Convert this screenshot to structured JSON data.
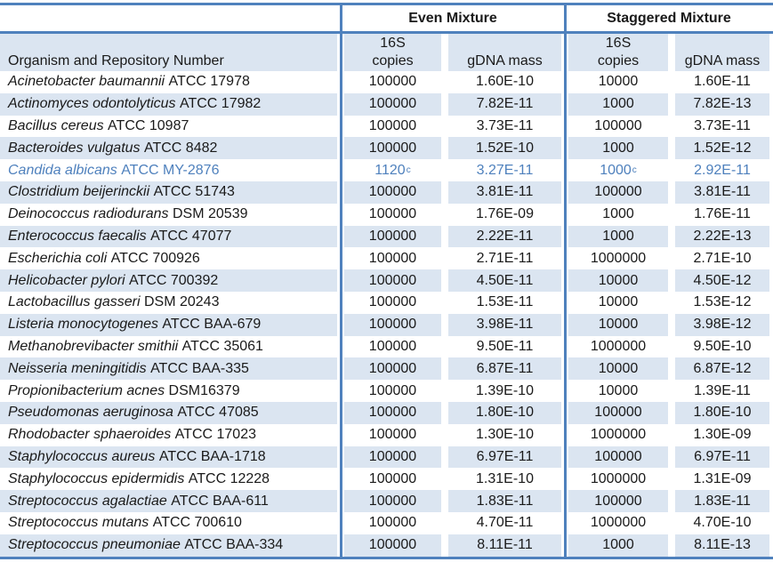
{
  "table": {
    "organism_header": "Organism and Repository Number",
    "groups": [
      {
        "label": "Even Mixture"
      },
      {
        "label": "Staggered Mixture"
      }
    ],
    "subheaders": {
      "copies_line1": "16S",
      "copies_line2": "copies",
      "gdna": "gDNA mass"
    },
    "colors": {
      "line_blue": "#4f81bd",
      "row_shade": "#dbe5f1",
      "highlight_text": "#4f81bd"
    },
    "rows": [
      {
        "organism": "Acinetobacter baumannii",
        "repository": "ATCC 17978",
        "even_16s_copies": "100000",
        "even_gdna_mass": "1.60E-10",
        "staggered_16s_copies": "10000",
        "staggered_gdna_mass": "1.60E-11"
      },
      {
        "organism": "Actinomyces odontolyticus",
        "repository": "ATCC 17982",
        "even_16s_copies": "100000",
        "even_gdna_mass": "7.82E-11",
        "staggered_16s_copies": "1000",
        "staggered_gdna_mass": "7.82E-13"
      },
      {
        "organism": "Bacillus cereus",
        "repository": "ATCC 10987",
        "even_16s_copies": "100000",
        "even_gdna_mass": "3.73E-11",
        "staggered_16s_copies": "100000",
        "staggered_gdna_mass": "3.73E-11"
      },
      {
        "organism": "Bacteroides vulgatus",
        "repository": "ATCC 8482",
        "even_16s_copies": "100000",
        "even_gdna_mass": "1.52E-10",
        "staggered_16s_copies": "1000",
        "staggered_gdna_mass": "1.52E-12"
      },
      {
        "organism": "Candida albicans",
        "repository": "ATCC MY-2876",
        "even_16s_copies": "1120",
        "even_16s_copies_sup": "c",
        "even_gdna_mass": "3.27E-11",
        "staggered_16s_copies": "1000",
        "staggered_16s_copies_sup": "c",
        "staggered_gdna_mass": "2.92E-11",
        "highlighted": true
      },
      {
        "organism": "Clostridium beijerinckii",
        "repository": "ATCC 51743",
        "even_16s_copies": "100000",
        "even_gdna_mass": "3.81E-11",
        "staggered_16s_copies": "100000",
        "staggered_gdna_mass": "3.81E-11"
      },
      {
        "organism": "Deinococcus radiodurans",
        "repository": "DSM 20539",
        "even_16s_copies": "100000",
        "even_gdna_mass": "1.76E-09",
        "staggered_16s_copies": "1000",
        "staggered_gdna_mass": "1.76E-11"
      },
      {
        "organism": "Enterococcus faecalis",
        "repository": "ATCC 47077",
        "even_16s_copies": "100000",
        "even_gdna_mass": "2.22E-11",
        "staggered_16s_copies": "1000",
        "staggered_gdna_mass": "2.22E-13"
      },
      {
        "organism": "Escherichia coli",
        "repository": "ATCC 700926",
        "even_16s_copies": "100000",
        "even_gdna_mass": "2.71E-11",
        "staggered_16s_copies": "1000000",
        "staggered_gdna_mass": "2.71E-10"
      },
      {
        "organism": "Helicobacter pylori",
        "repository": "ATCC 700392",
        "even_16s_copies": "100000",
        "even_gdna_mass": "4.50E-11",
        "staggered_16s_copies": "10000",
        "staggered_gdna_mass": "4.50E-12"
      },
      {
        "organism": "Lactobacillus gasseri",
        "repository": "DSM 20243",
        "even_16s_copies": "100000",
        "even_gdna_mass": "1.53E-11",
        "staggered_16s_copies": "10000",
        "staggered_gdna_mass": "1.53E-12"
      },
      {
        "organism": "Listeria monocytogenes",
        "repository": "ATCC BAA-679",
        "even_16s_copies": "100000",
        "even_gdna_mass": "3.98E-11",
        "staggered_16s_copies": "10000",
        "staggered_gdna_mass": "3.98E-12"
      },
      {
        "organism": "Methanobrevibacter smithii",
        "repository": "ATCC 35061",
        "even_16s_copies": "100000",
        "even_gdna_mass": "9.50E-11",
        "staggered_16s_copies": "1000000",
        "staggered_gdna_mass": "9.50E-10"
      },
      {
        "organism": "Neisseria meningitidis",
        "repository": "ATCC BAA-335",
        "even_16s_copies": "100000",
        "even_gdna_mass": "6.87E-11",
        "staggered_16s_copies": "10000",
        "staggered_gdna_mass": "6.87E-12"
      },
      {
        "organism": "Propionibacterium acnes",
        "repository": "DSM16379",
        "even_16s_copies": "100000",
        "even_gdna_mass": "1.39E-10",
        "staggered_16s_copies": "10000",
        "staggered_gdna_mass": "1.39E-11"
      },
      {
        "organism": "Pseudomonas aeruginosa",
        "repository": "ATCC 47085",
        "even_16s_copies": "100000",
        "even_gdna_mass": "1.80E-10",
        "staggered_16s_copies": "100000",
        "staggered_gdna_mass": "1.80E-10"
      },
      {
        "organism": "Rhodobacter sphaeroides",
        "repository": "ATCC 17023",
        "even_16s_copies": "100000",
        "even_gdna_mass": "1.30E-10",
        "staggered_16s_copies": "1000000",
        "staggered_gdna_mass": "1.30E-09"
      },
      {
        "organism": "Staphylococcus aureus",
        "repository": "ATCC BAA-1718",
        "even_16s_copies": "100000",
        "even_gdna_mass": "6.97E-11",
        "staggered_16s_copies": "100000",
        "staggered_gdna_mass": "6.97E-11"
      },
      {
        "organism": "Staphylococcus epidermidis",
        "repository": "ATCC 12228",
        "even_16s_copies": "100000",
        "even_gdna_mass": "1.31E-10",
        "staggered_16s_copies": "1000000",
        "staggered_gdna_mass": "1.31E-09"
      },
      {
        "organism": "Streptococcus agalactiae",
        "repository": "ATCC BAA-611",
        "even_16s_copies": "100000",
        "even_gdna_mass": "1.83E-11",
        "staggered_16s_copies": "100000",
        "staggered_gdna_mass": "1.83E-11"
      },
      {
        "organism": "Streptococcus mutans",
        "repository": "ATCC 700610",
        "even_16s_copies": "100000",
        "even_gdna_mass": "4.70E-11",
        "staggered_16s_copies": "1000000",
        "staggered_gdna_mass": "4.70E-10"
      },
      {
        "organism": "Streptococcus pneumoniae",
        "repository": "ATCC BAA-334",
        "even_16s_copies": "100000",
        "even_gdna_mass": "8.11E-11",
        "staggered_16s_copies": "1000",
        "staggered_gdna_mass": "8.11E-13"
      }
    ]
  }
}
